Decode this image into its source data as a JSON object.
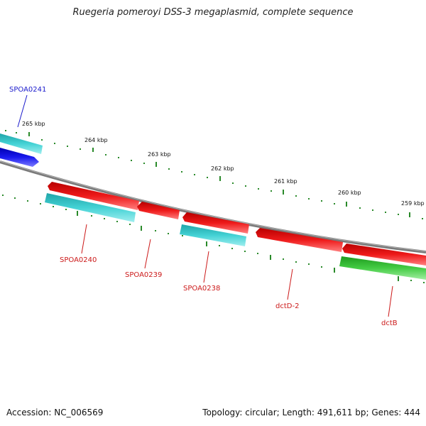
{
  "title": "Ruegeria pomeroyi DSS-3 megaplasmid, complete sequence",
  "footer": {
    "accession": "Accession: NC_006569",
    "summary": "Topology: circular; Length: 491,611 bp; Genes: 444"
  },
  "colors": {
    "backbone": "#808080",
    "tick": "#2a8a2a",
    "cyan_gene": "#3fc9cc",
    "red_gene": "#e01010",
    "blue_gene": "#1a1ae6",
    "green_gene": "#3ec83e",
    "blue_label": "#1a1acc",
    "red_label": "#cc1a1a"
  },
  "ticks": [
    {
      "label": "265 kbp"
    },
    {
      "label": "264 kbp"
    },
    {
      "label": "263 kbp"
    },
    {
      "label": "262 kbp"
    },
    {
      "label": "261 kbp"
    },
    {
      "label": "260 kbp"
    },
    {
      "label": "259 kbp"
    }
  ],
  "genes": [
    {
      "name": "SPOA0241",
      "color": "blue"
    },
    {
      "name": "SPOA0240",
      "color": "cyan"
    },
    {
      "name": "SPOA0239",
      "color": "red"
    },
    {
      "name": "SPOA0238",
      "color": "cyan"
    },
    {
      "name": "dctD-2",
      "color": "red"
    },
    {
      "name": "dctB",
      "color": "green"
    }
  ]
}
